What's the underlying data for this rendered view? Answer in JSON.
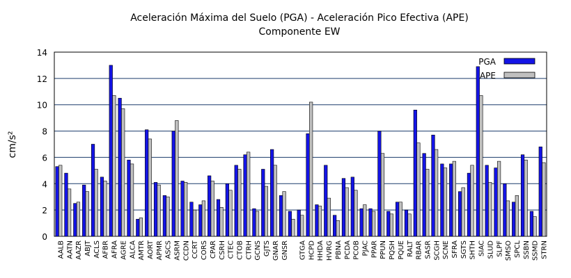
{
  "chart_data": {
    "type": "bar",
    "title": "Aceleración Máxima del Suelo (PGA) -  Aceleración Pico Efectiva (APE)",
    "subtitle": "Componente EW",
    "y_label": "cm/s²",
    "categories": [
      "AALB",
      "AATN",
      "AAZR",
      "ABJT",
      "ACLS",
      "AFBR",
      "AFRA",
      "AGRE",
      "ALCA",
      "AMTR",
      "AORT",
      "APMR",
      "ASCS",
      "ASRM",
      "CCDN",
      "CCRT",
      "CORS",
      "CPAR",
      "CSRH",
      "CTEC",
      "CTOB",
      "CTRH",
      "GCNS",
      "GJTS",
      "GNAR",
      "GNSR",
      null,
      "GTGA",
      "HCPD",
      "HHDA",
      "HVRG",
      "PBNA",
      "PCDA",
      "PCOB",
      "PJAC",
      "PPAR",
      "PPUN",
      "PQSH",
      "PQUE",
      "RALT",
      "RBAR",
      "SASR",
      "SCGH",
      "SCNE",
      "SFRA",
      "SGTS",
      "SHTH",
      "SIAC",
      "SLUD",
      "SLPF",
      "SMSO",
      "SPCL",
      "SSBN",
      "SSMD",
      "STRN"
    ],
    "series": [
      {
        "name": "PGA",
        "color": "#1414e6",
        "values": [
          5.3,
          4.8,
          2.5,
          3.9,
          7.0,
          4.5,
          13.0,
          10.5,
          5.8,
          1.3,
          8.1,
          4.1,
          3.1,
          8.0,
          4.2,
          2.6,
          2.4,
          4.6,
          2.8,
          4.0,
          5.4,
          6.2,
          2.1,
          5.1,
          6.6,
          3.1,
          1.9,
          2.0,
          7.8,
          2.4,
          5.4,
          1.6,
          4.4,
          4.5,
          2.1,
          2.1,
          8.0,
          1.9,
          2.6,
          2.0,
          9.6,
          6.3,
          7.7,
          5.5,
          5.5,
          3.4,
          4.8,
          12.9,
          5.4,
          5.2,
          4.0,
          2.6,
          6.2,
          1.9,
          6.8
        ]
      },
      {
        "name": "APE",
        "color": "#c0c0c0",
        "values": [
          5.4,
          3.6,
          2.6,
          3.4,
          5.1,
          4.2,
          10.7,
          9.7,
          5.5,
          1.4,
          7.4,
          3.9,
          3.0,
          8.8,
          4.1,
          2.0,
          2.7,
          4.2,
          2.2,
          3.5,
          5.1,
          6.4,
          1.9,
          3.8,
          5.4,
          3.4,
          1.3,
          1.6,
          10.2,
          2.3,
          2.9,
          1.2,
          3.7,
          3.5,
          2.4,
          1.9,
          6.3,
          1.7,
          2.6,
          1.7,
          7.1,
          5.1,
          6.6,
          5.2,
          5.7,
          3.7,
          5.4,
          10.7,
          4.1,
          5.7,
          2.7,
          3.1,
          5.8,
          1.5,
          5.6
        ]
      }
    ],
    "ylim": [
      0,
      14
    ],
    "yticks": [
      0,
      2,
      4,
      6,
      8,
      10,
      12,
      14
    ],
    "grid": true,
    "legend": "top-right"
  }
}
